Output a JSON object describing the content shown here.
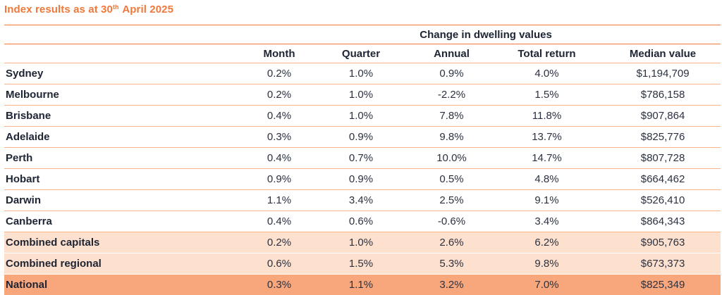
{
  "title": {
    "text": "Index results as at 30",
    "sup": "th",
    "rest": " April 2025"
  },
  "table": {
    "group_header": "Change in dwelling values",
    "columns": [
      "Month",
      "Quarter",
      "Annual",
      "Total return",
      "Median value"
    ],
    "rows": [
      {
        "name": "Sydney",
        "month": "0.2%",
        "quarter": "1.0%",
        "annual": "0.9%",
        "total": "4.0%",
        "median": "$1,194,709"
      },
      {
        "name": "Melbourne",
        "month": "0.2%",
        "quarter": "1.0%",
        "annual": "-2.2%",
        "total": "1.5%",
        "median": "$786,158"
      },
      {
        "name": "Brisbane",
        "month": "0.4%",
        "quarter": "1.0%",
        "annual": "7.8%",
        "total": "11.8%",
        "median": "$907,864"
      },
      {
        "name": "Adelaide",
        "month": "0.3%",
        "quarter": "0.9%",
        "annual": "9.8%",
        "total": "13.7%",
        "median": "$825,776"
      },
      {
        "name": "Perth",
        "month": "0.4%",
        "quarter": "0.7%",
        "annual": "10.0%",
        "total": "14.7%",
        "median": "$807,728"
      },
      {
        "name": "Hobart",
        "month": "0.9%",
        "quarter": "0.9%",
        "annual": "0.5%",
        "total": "4.8%",
        "median": "$664,462"
      },
      {
        "name": "Darwin",
        "month": "1.1%",
        "quarter": "3.4%",
        "annual": "2.5%",
        "total": "9.1%",
        "median": "$526,410"
      },
      {
        "name": "Canberra",
        "month": "0.4%",
        "quarter": "0.6%",
        "annual": "-0.6%",
        "total": "3.4%",
        "median": "$864,343"
      },
      {
        "name": "Combined capitals",
        "month": "0.2%",
        "quarter": "1.0%",
        "annual": "2.6%",
        "total": "6.2%",
        "median": "$905,763"
      },
      {
        "name": "Combined regional",
        "month": "0.6%",
        "quarter": "1.5%",
        "annual": "5.3%",
        "total": "9.8%",
        "median": "$673,373"
      },
      {
        "name": "National",
        "month": "0.3%",
        "quarter": "1.1%",
        "annual": "3.2%",
        "total": "7.0%",
        "median": "$825,349"
      }
    ]
  },
  "colors": {
    "accent": "#f0783a",
    "rule": "#f6b48c",
    "combined_fill": "#fde0cd",
    "national_fill": "#f8a77d"
  }
}
